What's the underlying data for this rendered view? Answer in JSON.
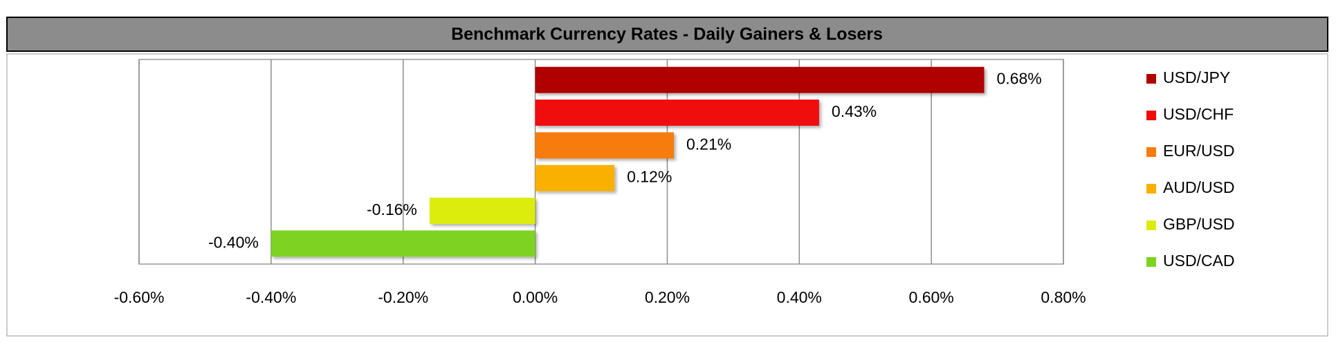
{
  "chart_data": {
    "type": "hbar",
    "title": "Benchmark Currency Rates - Daily Gainers & Losers",
    "categories": [
      "USD/JPY",
      "USD/CHF",
      "EUR/USD",
      "AUD/USD",
      "GBP/USD",
      "USD/CAD"
    ],
    "values": [
      0.68,
      0.43,
      0.21,
      0.12,
      -0.16,
      -0.4
    ],
    "value_labels": [
      "0.68%",
      "0.43%",
      "0.21%",
      "0.12%",
      "-0.16%",
      "-0.40%"
    ],
    "colors": [
      "#b00000",
      "#f00a0a",
      "#f57c0e",
      "#f9b000",
      "#dcec0a",
      "#7ed321"
    ],
    "xlim": [
      -0.6,
      0.8
    ],
    "xticks": [
      {
        "value": -0.6,
        "label": "-0.60%"
      },
      {
        "value": -0.4,
        "label": "-0.40%"
      },
      {
        "value": -0.2,
        "label": "-0.20%"
      },
      {
        "value": 0,
        "label": "0.00%"
      },
      {
        "value": 0.2,
        "label": "0.20%"
      },
      {
        "value": 0.4,
        "label": "0.40%"
      },
      {
        "value": 0.6,
        "label": "0.60%"
      },
      {
        "value": 0.8,
        "label": "0.80%"
      }
    ],
    "grid": true,
    "legend": "right"
  }
}
